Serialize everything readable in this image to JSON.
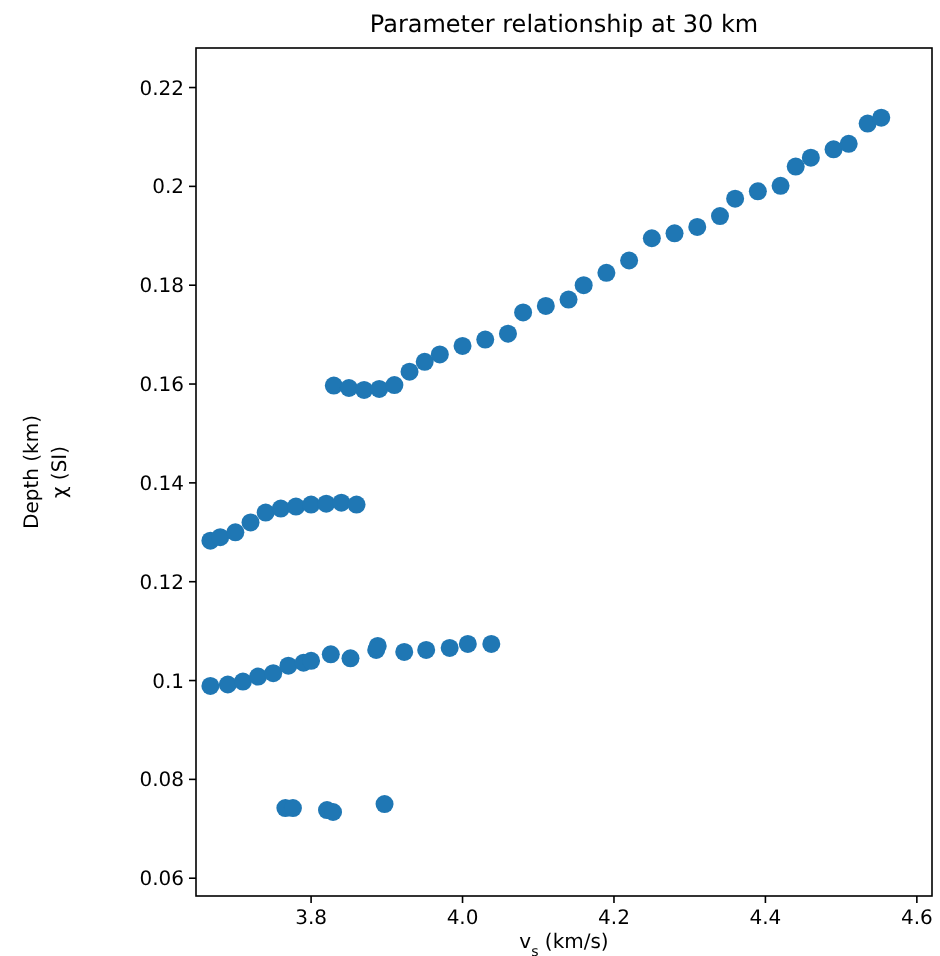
{
  "chart_data": {
    "type": "scatter",
    "title": "Parameter relationship at 30 km",
    "xlabel": "v$_{s}$ (km/s)",
    "ylabel": "Depth (km)",
    "annotations": [
      "χ (SI)"
    ],
    "xlim": [
      3.648,
      4.62
    ],
    "ylim": [
      0.0564,
      0.228
    ],
    "xticks": [
      3.8,
      {
        "value": 4,
        "label": "4.0"
      },
      4.2,
      4.4,
      4.6
    ],
    "yticks": [
      0.06,
      0.08,
      0.1,
      0.12,
      0.14,
      0.16,
      0.18,
      0.2,
      0.22
    ],
    "grid": false,
    "marker": "circle",
    "x": [
      3.766,
      3.776,
      3.821,
      3.829,
      3.897,
      3.667,
      3.69,
      3.71,
      3.73,
      3.75,
      3.77,
      3.79,
      3.8,
      3.826,
      3.852,
      3.886,
      3.888,
      3.923,
      3.952,
      3.983,
      4.007,
      4.038,
      3.667,
      3.68,
      3.7,
      3.72,
      3.74,
      3.76,
      3.78,
      3.8,
      3.82,
      3.84,
      3.86,
      3.83,
      3.85,
      3.87,
      3.89,
      3.91,
      3.93,
      3.95,
      3.97,
      4.0,
      4.03,
      4.06,
      4.08,
      4.11,
      4.14,
      4.16,
      4.19,
      4.22,
      4.25,
      4.28,
      4.31,
      4.34,
      4.36,
      4.39,
      4.42,
      4.44,
      4.46,
      4.49,
      4.51,
      4.535,
      4.553
    ],
    "series": [
      {
        "color": "#1f77b4",
        "values": [
          0.0742,
          0.0742,
          0.0738,
          0.0734,
          0.075,
          0.0989,
          0.0992,
          0.0998,
          0.1008,
          0.1015,
          0.103,
          0.1036,
          0.104,
          0.1053,
          0.1045,
          0.1062,
          0.107,
          0.1058,
          0.1062,
          0.1066,
          0.1074,
          0.1074,
          0.1283,
          0.129,
          0.13,
          0.132,
          0.134,
          0.1348,
          0.1352,
          0.1356,
          0.1358,
          0.136,
          0.1356,
          0.1597,
          0.1592,
          0.1588,
          0.159,
          0.1598,
          0.1625,
          0.1645,
          0.166,
          0.1677,
          0.169,
          0.1702,
          0.1745,
          0.1758,
          0.1771,
          0.18,
          0.1825,
          0.185,
          0.1895,
          0.1905,
          0.1918,
          0.194,
          0.1975,
          0.199,
          0.2001,
          0.204,
          0.2058,
          0.2075,
          0.2086,
          0.2127,
          0.2139
        ]
      }
    ]
  }
}
